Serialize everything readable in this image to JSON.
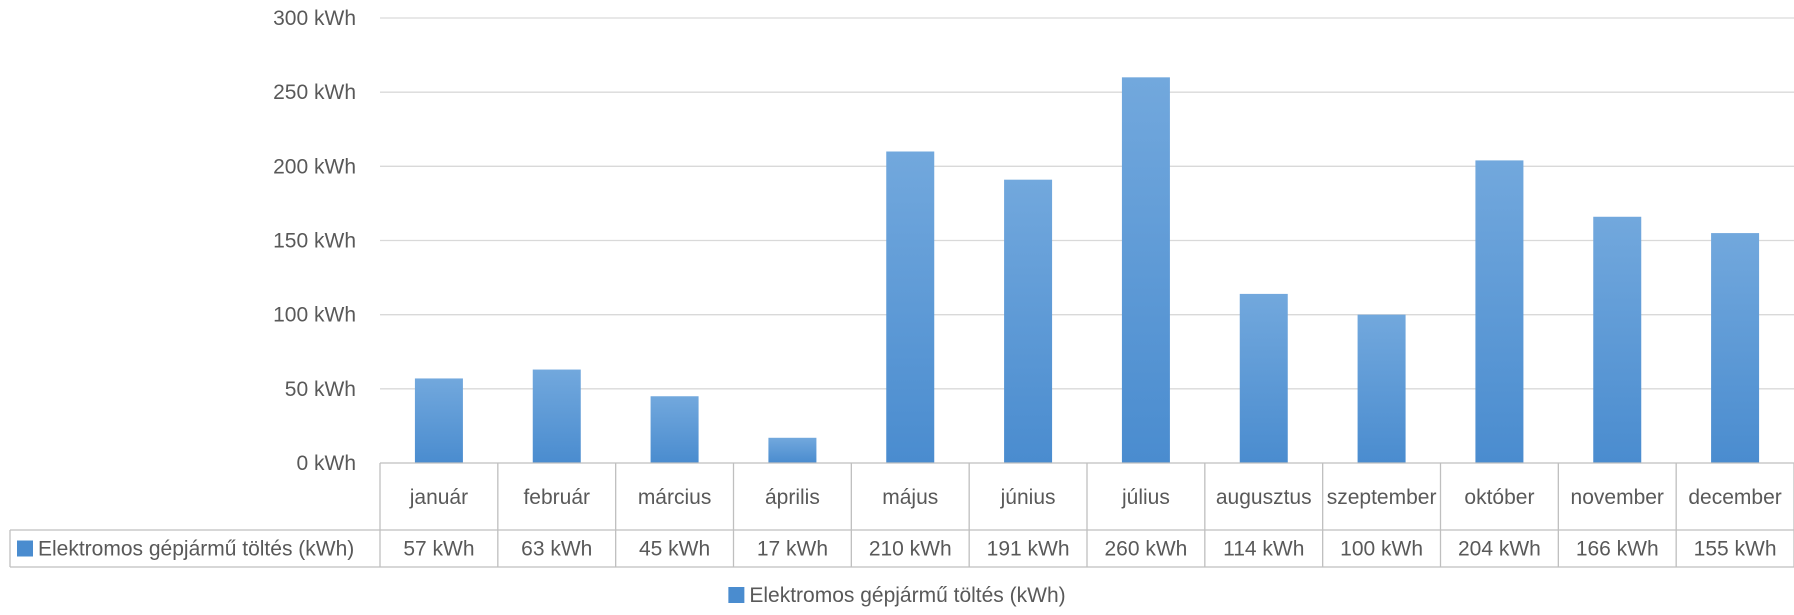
{
  "chart_data": {
    "type": "bar",
    "categories": [
      "január",
      "február",
      "március",
      "április",
      "május",
      "június",
      "július",
      "augusztus",
      "szeptember",
      "október",
      "november",
      "december"
    ],
    "series": [
      {
        "name": "Elektromos gépjármű töltés (kWh)",
        "values": [
          57,
          63,
          45,
          17,
          210,
          191,
          260,
          114,
          100,
          204,
          166,
          155
        ],
        "value_labels": [
          "57 kWh",
          "63 kWh",
          "45 kWh",
          "17 kWh",
          "210 kWh",
          "191 kWh",
          "260 kWh",
          "114 kWh",
          "100 kWh",
          "204 kWh",
          "166 kWh",
          "155 kWh"
        ]
      }
    ],
    "ylim": [
      0,
      300
    ],
    "yticks": [
      0,
      50,
      100,
      150,
      200,
      250,
      300
    ],
    "ytick_labels": [
      "0 kWh",
      "50 kWh",
      "100 kWh",
      "150 kWh",
      "200 kWh",
      "250 kWh",
      "300 kWh"
    ],
    "grid": true,
    "data_table": true,
    "legend": {
      "position": "bottom",
      "label": "Elektromos gépjármű töltés (kWh)"
    },
    "colors": {
      "bar_top": "#72a8dd",
      "bar_bottom": "#4a8ccf",
      "grid": "#d9d9d9",
      "table_border": "#bfbfbf",
      "text": "#595959"
    }
  }
}
